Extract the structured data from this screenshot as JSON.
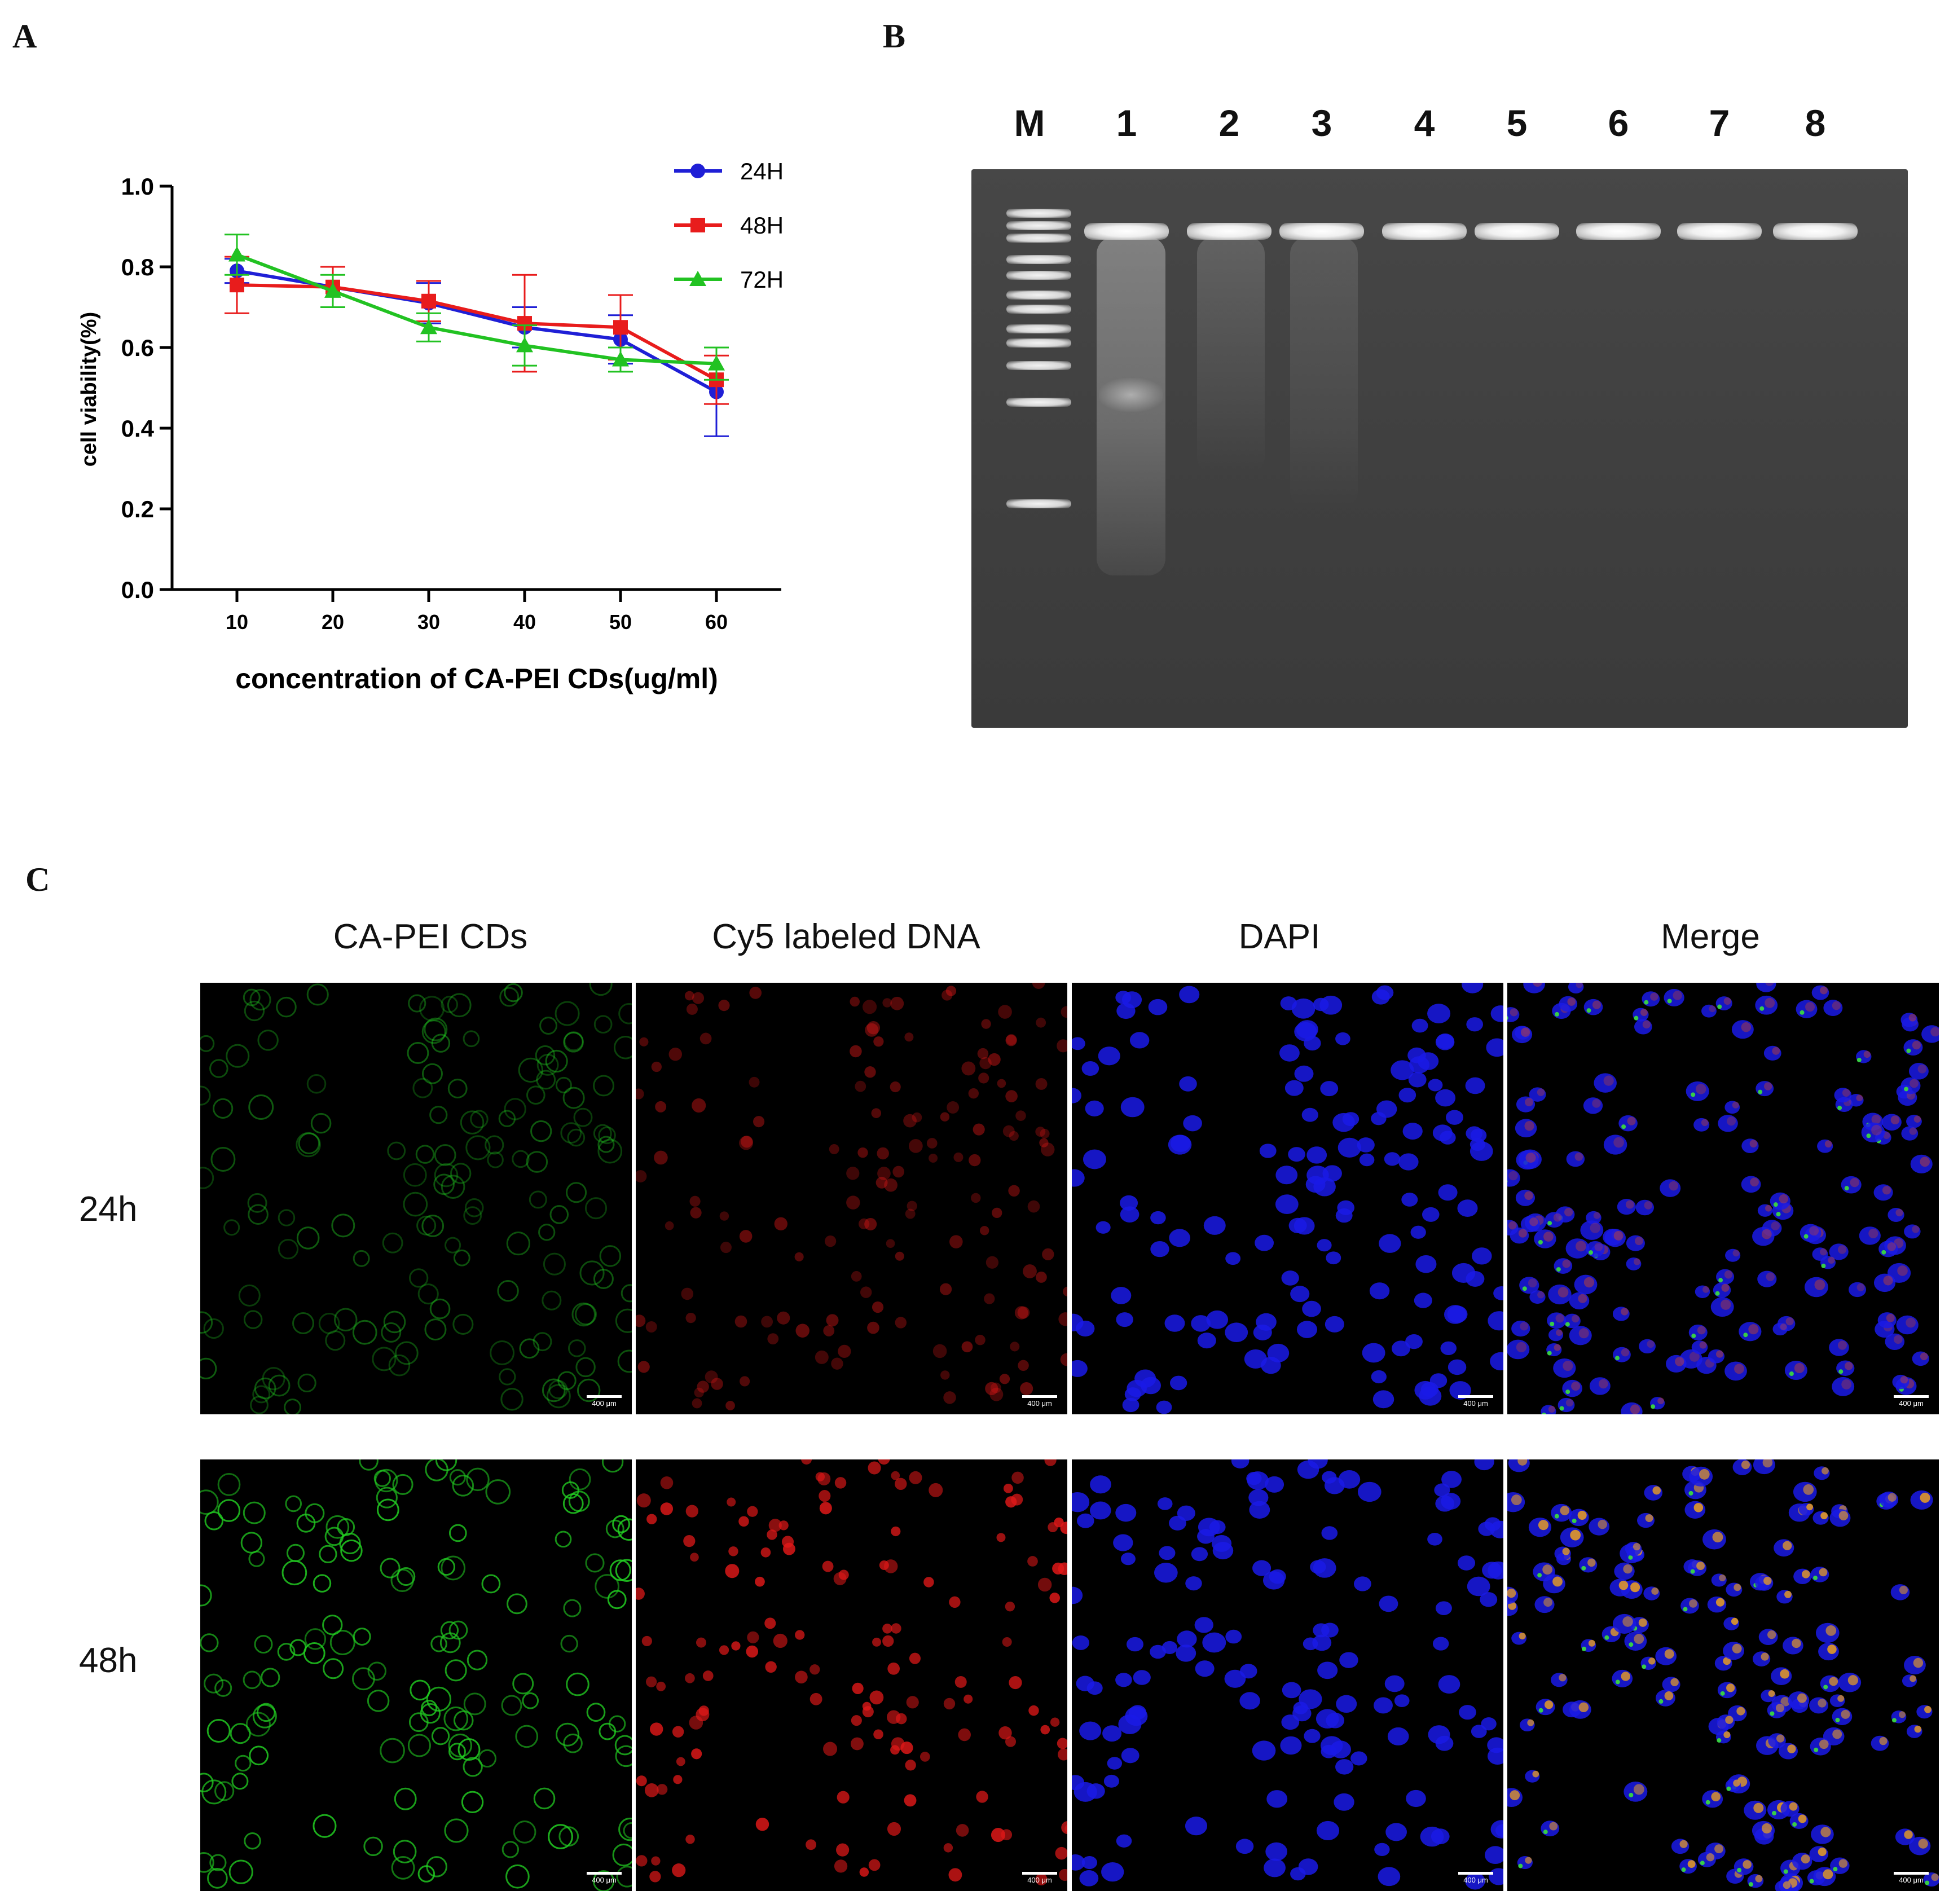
{
  "panels": {
    "a": "A",
    "b": "B",
    "c": "C"
  },
  "chart_data": {
    "type": "line",
    "xlabel": "concentration of CA-PEI CDs(ug/ml)",
    "ylabel": "cell viability(%)",
    "x": [
      10,
      20,
      30,
      40,
      50,
      60
    ],
    "ylim": [
      0,
      1.0
    ],
    "yticks": [
      0.0,
      0.2,
      0.4,
      0.6,
      0.8,
      1.0
    ],
    "ytick_labels": [
      "0.0",
      "0.2",
      "0.4",
      "0.6",
      "0.8",
      "1.0"
    ],
    "legend_position": "top-right",
    "series": [
      {
        "name": "24H",
        "color": "#1f1fd6",
        "marker": "circle",
        "values": [
          0.79,
          0.75,
          0.71,
          0.65,
          0.62,
          0.49
        ],
        "errors": [
          0.03,
          0.05,
          0.05,
          0.05,
          0.06,
          0.11
        ]
      },
      {
        "name": "48H",
        "color": "#e81c1c",
        "marker": "square",
        "values": [
          0.755,
          0.75,
          0.715,
          0.66,
          0.65,
          0.52
        ],
        "errors": [
          0.07,
          0.05,
          0.05,
          0.12,
          0.08,
          0.06
        ]
      },
      {
        "name": "72H",
        "color": "#22c222",
        "marker": "triangle",
        "values": [
          0.83,
          0.74,
          0.65,
          0.605,
          0.57,
          0.56
        ],
        "errors": [
          0.05,
          0.04,
          0.035,
          0.05,
          0.03,
          0.04
        ]
      }
    ]
  },
  "gel": {
    "lanes": [
      "M",
      "1",
      "2",
      "3",
      "4",
      "5",
      "6",
      "7",
      "8"
    ]
  },
  "microscopy": {
    "columns": [
      "CA-PEI CDs",
      "Cy5 labeled DNA",
      "DAPI",
      "Merge"
    ],
    "rows": [
      "24h",
      "48h"
    ],
    "scale_label": "400 μm"
  }
}
